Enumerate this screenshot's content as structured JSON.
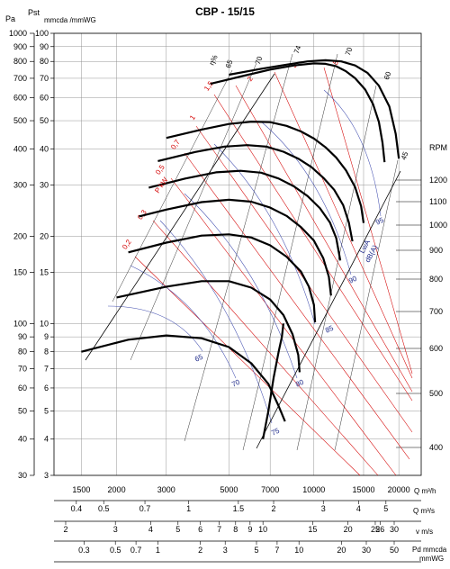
{
  "chart_data": {
    "type": "line",
    "title": "CBP - 15/15",
    "pressure_axis": {
      "label_pa": "Pa",
      "label_pst": "Pst",
      "label_mmwg": "mmcda /mmWG",
      "scale": "log",
      "mm_range": [
        3,
        100
      ],
      "pa_ticks": [
        "1000",
        "900",
        "800",
        "700",
        "600",
        "500",
        "400",
        "300",
        "200",
        "150",
        "100",
        "90",
        "80",
        "70",
        "60",
        "50",
        "40",
        "30"
      ],
      "pa_values": [
        1000,
        900,
        800,
        700,
        600,
        500,
        400,
        300,
        200,
        150,
        100,
        90,
        80,
        70,
        60,
        50,
        40,
        30
      ],
      "mm_ticks": [
        "100",
        "90",
        "80",
        "70",
        "60",
        "50",
        "40",
        "30",
        "20",
        "15",
        "10",
        "9",
        "8",
        "7",
        "6",
        "5",
        "4",
        "3"
      ],
      "mm_values": [
        100,
        90,
        80,
        70,
        60,
        50,
        40,
        30,
        20,
        15,
        10,
        9,
        8,
        7,
        6,
        5,
        4,
        3
      ]
    },
    "rpm_axis": {
      "label": "RPM",
      "ticks": [
        "1200",
        "1100",
        "1000",
        "900",
        "800",
        "700",
        "600",
        "500",
        "400"
      ],
      "values": [
        1200,
        1100,
        1000,
        900,
        800,
        700,
        600,
        500,
        400
      ]
    },
    "flow_axis": {
      "label": "Q m³/h",
      "scale": "log",
      "range": [
        1200,
        24000
      ],
      "ticks": [
        "1500",
        "2000",
        "3000",
        "5000",
        "7000",
        "10000",
        "15000",
        "20000"
      ],
      "values": [
        1500,
        2000,
        3000,
        5000,
        7000,
        10000,
        15000,
        20000
      ]
    },
    "extra_axes": [
      {
        "label": "Q m³/s",
        "ticks": [
          "0.4",
          "0.5",
          "0.7",
          "1",
          "1.5",
          "2",
          "3",
          "4",
          "5"
        ],
        "values": [
          0.4,
          0.5,
          0.7,
          1,
          1.5,
          2,
          3,
          4,
          5
        ]
      },
      {
        "label": "v m/s",
        "ticks": [
          "2",
          "3",
          "4",
          "5",
          "6",
          "7",
          "8",
          "9",
          "10",
          "15",
          "20",
          "25",
          "26",
          "30"
        ],
        "values": [
          2,
          3,
          4,
          5,
          6,
          7,
          8,
          9,
          10,
          15,
          20,
          25,
          26,
          30
        ]
      },
      {
        "label_line1": "Pd mmcda",
        "label_line2": "mmWG",
        "ticks": [
          "0.3",
          "0.5",
          "0.7",
          "1",
          "2",
          "3",
          "5",
          "7",
          "10",
          "20",
          "30",
          "50"
        ],
        "values": [
          0.3,
          0.5,
          0.7,
          1,
          2,
          3,
          5,
          7,
          10,
          20,
          30,
          50
        ]
      }
    ],
    "fan_curves": [
      {
        "rpm": 400,
        "points": [
          [
            6600,
            4
          ],
          [
            6900,
            5
          ],
          [
            7200,
            6.5
          ],
          [
            7500,
            8
          ],
          [
            7700,
            9
          ],
          [
            7800,
            10
          ]
        ]
      },
      {
        "rpm": 500,
        "points": [
          [
            1500,
            8
          ],
          [
            2200,
            8.8
          ],
          [
            3000,
            9.1
          ],
          [
            4000,
            8.9
          ],
          [
            5000,
            8.3
          ],
          [
            6000,
            7.3
          ],
          [
            6900,
            6.2
          ],
          [
            7500,
            5.2
          ],
          [
            7900,
            4.6
          ]
        ]
      },
      {
        "rpm": 600,
        "points": [
          [
            2000,
            12.3
          ],
          [
            3000,
            13.4
          ],
          [
            4000,
            14
          ],
          [
            5000,
            14
          ],
          [
            6000,
            13.3
          ],
          [
            7000,
            12.1
          ],
          [
            7800,
            10.7
          ],
          [
            8400,
            9.2
          ],
          [
            8800,
            7.8
          ],
          [
            8900,
            6.8
          ]
        ]
      },
      {
        "rpm": 700,
        "points": [
          [
            2200,
            17.6
          ],
          [
            3000,
            19
          ],
          [
            4000,
            20.1
          ],
          [
            5000,
            20.3
          ],
          [
            6000,
            19.8
          ],
          [
            7000,
            18.6
          ],
          [
            8000,
            17
          ],
          [
            9000,
            15.1
          ],
          [
            9600,
            13.4
          ],
          [
            10000,
            11.6
          ],
          [
            10100,
            10.1
          ]
        ]
      },
      {
        "rpm": 800,
        "points": [
          [
            2400,
            23.4
          ],
          [
            3000,
            24.7
          ],
          [
            4000,
            26.2
          ],
          [
            5000,
            26.7
          ],
          [
            6000,
            26.3
          ],
          [
            7000,
            25.1
          ],
          [
            8000,
            23.5
          ],
          [
            9000,
            21.5
          ],
          [
            10000,
            19.3
          ],
          [
            10800,
            16.8
          ],
          [
            11300,
            14.5
          ],
          [
            11500,
            12.5
          ]
        ]
      },
      {
        "rpm": 900,
        "points": [
          [
            2600,
            29.4
          ],
          [
            3500,
            31.6
          ],
          [
            4500,
            33.2
          ],
          [
            5500,
            33.6
          ],
          [
            6500,
            33.1
          ],
          [
            7500,
            31.6
          ],
          [
            8500,
            29.7
          ],
          [
            9500,
            27.5
          ],
          [
            10500,
            25
          ],
          [
            11400,
            22.3
          ],
          [
            12000,
            19.7
          ],
          [
            12400,
            16.5
          ]
        ]
      },
      {
        "rpm": 1000,
        "points": [
          [
            2800,
            36.3
          ],
          [
            3800,
            39
          ],
          [
            4800,
            40.7
          ],
          [
            5800,
            41.2
          ],
          [
            6800,
            40.7
          ],
          [
            7800,
            39.1
          ],
          [
            8800,
            37
          ],
          [
            9800,
            34.6
          ],
          [
            10800,
            31.8
          ],
          [
            11800,
            28.9
          ],
          [
            12700,
            25.6
          ],
          [
            13300,
            22.3
          ],
          [
            13700,
            19.2
          ]
        ]
      },
      {
        "rpm": 1100,
        "points": [
          [
            3000,
            43.6
          ],
          [
            4000,
            46.6
          ],
          [
            5000,
            48.7
          ],
          [
            6000,
            49.6
          ],
          [
            7000,
            49.4
          ],
          [
            8000,
            48
          ],
          [
            9000,
            45.9
          ],
          [
            10000,
            43.4
          ],
          [
            11000,
            40.5
          ],
          [
            12000,
            37.3
          ],
          [
            13000,
            33.7
          ],
          [
            14000,
            29.5
          ],
          [
            14700,
            25.4
          ],
          [
            15000,
            22.2
          ]
        ]
      },
      {
        "rpm": 1200,
        "points": [
          [
            4300,
            67
          ],
          [
            5500,
            71
          ],
          [
            7000,
            75
          ],
          [
            8500,
            77.5
          ],
          [
            10000,
            78.8
          ],
          [
            11000,
            78.5
          ],
          [
            12000,
            77
          ],
          [
            13000,
            74
          ],
          [
            14000,
            70
          ],
          [
            15200,
            64
          ],
          [
            16200,
            57
          ],
          [
            17000,
            49.5
          ],
          [
            17500,
            42
          ],
          [
            17800,
            36
          ]
        ]
      },
      {
        "rpm": 1300,
        "points": [
          [
            5000,
            72
          ],
          [
            6500,
            75.5
          ],
          [
            8000,
            78
          ],
          [
            9500,
            80
          ],
          [
            11000,
            80.8
          ],
          [
            12500,
            80
          ],
          [
            14000,
            77.5
          ],
          [
            15500,
            73
          ],
          [
            17000,
            66
          ],
          [
            18500,
            56
          ],
          [
            19500,
            45
          ],
          [
            20000,
            37
          ]
        ]
      }
    ],
    "power_labels": [
      "0,2",
      "0,3",
      "0,5",
      "0,7",
      "1",
      "1,5",
      "2",
      "3",
      "5"
    ],
    "power_axis_label": "P kW",
    "efficiency_label": "η%",
    "efficiency_labels": [
      "65",
      "70",
      "74",
      "70",
      "60",
      "45"
    ],
    "noise_labels": [
      "65",
      "70",
      "75",
      "80",
      "85",
      "90",
      "95"
    ],
    "noise_axis_label_1": "LwA",
    "noise_axis_label_2": "dB(A)"
  }
}
